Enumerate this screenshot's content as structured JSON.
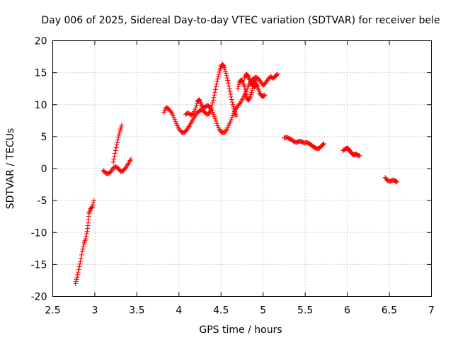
{
  "chart_data": {
    "type": "scatter",
    "title": "Day 006 of 2025, Sidereal Day-to-day VTEC variation (SDTVAR) for receiver bele",
    "xlabel": "GPS time / hours",
    "ylabel": "SDTVAR / TECUs",
    "xlim": [
      2.5,
      7
    ],
    "ylim": [
      -20,
      20
    ],
    "xticks": [
      2.5,
      3,
      3.5,
      4,
      4.5,
      5,
      5.5,
      6,
      6.5,
      7
    ],
    "yticks": [
      -20,
      -15,
      -10,
      -5,
      0,
      5,
      10,
      15,
      20
    ],
    "xtick_labels": [
      "2.5",
      "3",
      "3.5",
      "4",
      "4.5",
      "5",
      "5.5",
      "6",
      "6.5",
      "7"
    ],
    "ytick_labels": [
      "-20",
      "-15",
      "-10",
      "-5",
      "0",
      "5",
      "10",
      "15",
      "20"
    ],
    "grid": true,
    "marker": "+",
    "color": "#ff0000",
    "series": [
      {
        "name": "SDTVAR",
        "segments": [
          [
            [
              2.77,
              -18.0
            ],
            [
              2.79,
              -17.0
            ],
            [
              2.81,
              -15.8
            ],
            [
              2.83,
              -14.5
            ],
            [
              2.85,
              -13.0
            ],
            [
              2.87,
              -11.8
            ],
            [
              2.89,
              -11.0
            ],
            [
              2.91,
              -9.8
            ],
            [
              2.92,
              -8.5
            ],
            [
              2.93,
              -7.0
            ],
            [
              2.95,
              -6.3
            ],
            [
              2.97,
              -6.0
            ],
            [
              2.99,
              -5.0
            ]
          ],
          [
            [
              3.1,
              -0.3
            ],
            [
              3.13,
              -0.7
            ],
            [
              3.16,
              -0.8
            ],
            [
              3.19,
              -0.5
            ],
            [
              3.22,
              0.1
            ],
            [
              3.25,
              0.3
            ],
            [
              3.28,
              0.0
            ],
            [
              3.31,
              -0.5
            ],
            [
              3.34,
              -0.3
            ],
            [
              3.37,
              0.2
            ],
            [
              3.4,
              0.8
            ],
            [
              3.43,
              1.5
            ]
          ],
          [
            [
              3.22,
              1.0
            ],
            [
              3.24,
              2.4
            ],
            [
              3.26,
              3.7
            ],
            [
              3.28,
              4.9
            ],
            [
              3.3,
              5.9
            ],
            [
              3.32,
              6.8
            ]
          ],
          [
            [
              3.82,
              8.8
            ],
            [
              3.85,
              9.6
            ],
            [
              3.88,
              9.3
            ],
            [
              3.91,
              8.8
            ],
            [
              3.94,
              8.0
            ],
            [
              3.97,
              7.0
            ],
            [
              4.0,
              6.2
            ],
            [
              4.03,
              5.7
            ],
            [
              4.06,
              5.6
            ],
            [
              4.09,
              6.0
            ],
            [
              4.12,
              6.6
            ],
            [
              4.15,
              7.3
            ],
            [
              4.18,
              8.0
            ],
            [
              4.21,
              8.6
            ],
            [
              4.24,
              9.0
            ],
            [
              4.27,
              9.2
            ],
            [
              4.3,
              8.9
            ],
            [
              4.33,
              8.5
            ],
            [
              4.36,
              8.6
            ],
            [
              4.38,
              9.2
            ],
            [
              4.4,
              10.3
            ],
            [
              4.42,
              11.5
            ],
            [
              4.44,
              12.8
            ],
            [
              4.46,
              14.0
            ],
            [
              4.48,
              15.1
            ],
            [
              4.5,
              16.0
            ],
            [
              4.52,
              16.3
            ],
            [
              4.54,
              15.8
            ],
            [
              4.56,
              14.9
            ],
            [
              4.58,
              13.8
            ],
            [
              4.6,
              12.5
            ],
            [
              4.62,
              11.2
            ],
            [
              4.64,
              10.0
            ],
            [
              4.66,
              9.0
            ],
            [
              4.68,
              8.2
            ]
          ],
          [
            [
              4.08,
              8.5
            ],
            [
              4.11,
              8.7
            ],
            [
              4.14,
              8.4
            ],
            [
              4.17,
              8.6
            ],
            [
              4.2,
              9.5
            ],
            [
              4.22,
              10.5
            ],
            [
              4.24,
              10.8
            ],
            [
              4.26,
              10.2
            ],
            [
              4.28,
              9.5
            ],
            [
              4.31,
              9.6
            ],
            [
              4.34,
              9.9
            ],
            [
              4.37,
              9.6
            ],
            [
              4.4,
              8.8
            ],
            [
              4.43,
              7.8
            ],
            [
              4.46,
              6.7
            ],
            [
              4.49,
              5.9
            ],
            [
              4.52,
              5.6
            ],
            [
              4.55,
              5.7
            ],
            [
              4.58,
              6.4
            ],
            [
              4.61,
              7.3
            ],
            [
              4.64,
              8.3
            ],
            [
              4.67,
              9.2
            ],
            [
              4.7,
              9.8
            ],
            [
              4.73,
              10.3
            ],
            [
              4.76,
              11.0
            ],
            [
              4.79,
              11.8
            ],
            [
              4.82,
              12.8
            ],
            [
              4.85,
              13.6
            ],
            [
              4.88,
              14.0
            ],
            [
              4.91,
              14.3
            ],
            [
              4.94,
              14.1
            ],
            [
              4.97,
              13.6
            ],
            [
              5.0,
              13.0
            ],
            [
              5.03,
              13.4
            ],
            [
              5.06,
              14.0
            ],
            [
              5.09,
              14.4
            ],
            [
              5.12,
              14.1
            ],
            [
              5.15,
              14.5
            ],
            [
              5.17,
              14.8
            ]
          ],
          [
            [
              4.7,
              12.5
            ],
            [
              4.72,
              13.5
            ],
            [
              4.74,
              13.9
            ],
            [
              4.76,
              13.6
            ],
            [
              4.78,
              12.8
            ],
            [
              4.8,
              11.6
            ],
            [
              4.81,
              10.9
            ],
            [
              4.83,
              10.7
            ],
            [
              4.85,
              11.3
            ],
            [
              4.87,
              12.2
            ],
            [
              4.88,
              13.2
            ],
            [
              4.9,
              13.8
            ],
            [
              4.92,
              13.2
            ],
            [
              4.94,
              12.6
            ],
            [
              4.96,
              11.8
            ],
            [
              4.98,
              11.4
            ],
            [
              5.0,
              11.3
            ],
            [
              5.02,
              11.5
            ]
          ],
          [
            [
              4.78,
              14.2
            ],
            [
              4.8,
              14.8
            ],
            [
              4.82,
              14.5
            ],
            [
              4.84,
              13.9
            ],
            [
              4.86,
              13.3
            ],
            [
              4.88,
              12.9
            ],
            [
              4.9,
              12.8
            ],
            [
              4.92,
              13.1
            ]
          ],
          [
            [
              5.25,
              4.8
            ],
            [
              5.28,
              4.9
            ],
            [
              5.31,
              4.7
            ],
            [
              5.34,
              4.5
            ],
            [
              5.37,
              4.2
            ],
            [
              5.4,
              4.1
            ],
            [
              5.43,
              4.3
            ],
            [
              5.46,
              4.2
            ],
            [
              5.49,
              4.0
            ],
            [
              5.52,
              4.1
            ],
            [
              5.55,
              3.9
            ],
            [
              5.58,
              3.6
            ],
            [
              5.61,
              3.3
            ],
            [
              5.64,
              3.1
            ],
            [
              5.67,
              3.2
            ],
            [
              5.7,
              3.6
            ],
            [
              5.72,
              3.9
            ]
          ],
          [
            [
              5.95,
              2.8
            ],
            [
              5.98,
              3.1
            ],
            [
              6.0,
              3.2
            ],
            [
              6.02,
              3.0
            ],
            [
              6.04,
              2.6
            ],
            [
              6.06,
              2.3
            ],
            [
              6.08,
              2.1
            ],
            [
              6.1,
              2.3
            ],
            [
              6.12,
              2.1
            ],
            [
              6.15,
              2.0
            ]
          ],
          [
            [
              6.45,
              -1.4
            ],
            [
              6.48,
              -1.9
            ],
            [
              6.51,
              -2.0
            ],
            [
              6.54,
              -1.8
            ],
            [
              6.57,
              -1.9
            ],
            [
              6.59,
              -2.1
            ]
          ]
        ]
      }
    ]
  }
}
